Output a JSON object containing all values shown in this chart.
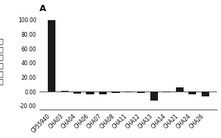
{
  "categories": [
    "CP55940",
    "CHA03",
    "CHA04",
    "CHA06",
    "CHA07",
    "CHA08",
    "CHA11",
    "CHA12",
    "CHA13",
    "CHA14",
    "CHA21",
    "CHA24",
    "CHA26"
  ],
  "values": [
    100.0,
    1.5,
    -2.5,
    -4.0,
    -3.5,
    -1.5,
    -1.0,
    -1.5,
    -12.0,
    -1.0,
    6.0,
    -3.5,
    -7.0
  ],
  "bar_color": "#1a1a1a",
  "ylabel_chars": [
    "相",
    "对",
    "激",
    "动",
    "比",
    "率"
  ],
  "title": "A",
  "ylim": [
    -25,
    110
  ],
  "yticks": [
    -20.0,
    0.0,
    20.0,
    40.0,
    60.0,
    80.0,
    100.0
  ],
  "background_color": "#ffffff",
  "plot_bg_color": "#ffffff",
  "bar_width": 0.6,
  "title_fontsize": 9,
  "tick_fontsize": 5.5,
  "ylabel_fontsize": 7
}
